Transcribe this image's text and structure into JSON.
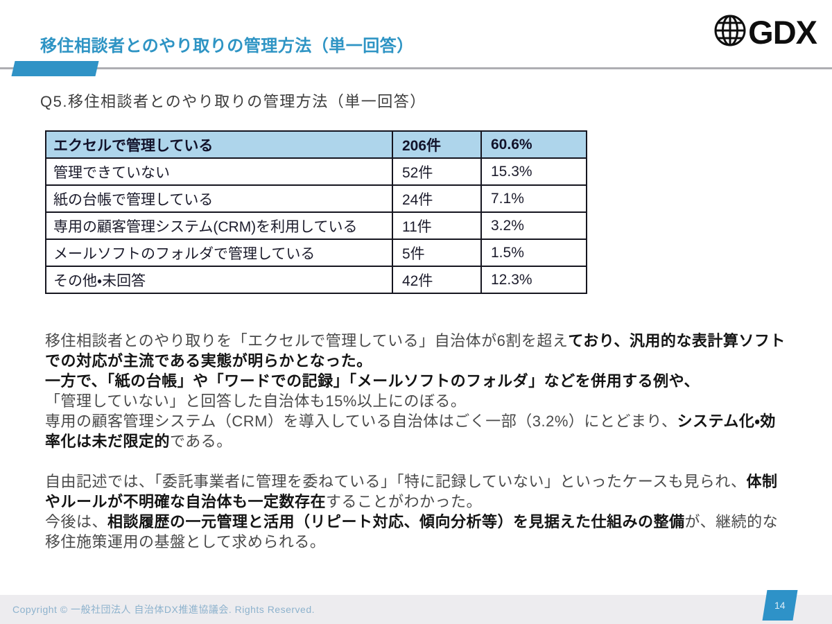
{
  "header": {
    "title": "移住相談者とのやり取りの管理方法（単一回答）",
    "logo_text": "GDX",
    "logo_icon": "globe-icon"
  },
  "question": {
    "label": "Q5.移住相談者とのやり取りの管理方法（単一回答）"
  },
  "table": {
    "rows": [
      {
        "label": "エクセルで管理している",
        "count": "206件",
        "percent": "60.6%",
        "highlight": true
      },
      {
        "label": "管理できていない",
        "count": "52件",
        "percent": "15.3%",
        "highlight": false
      },
      {
        "label": "紙の台帳で管理している",
        "count": "24件",
        "percent": "7.1%",
        "highlight": false
      },
      {
        "label": "専用の顧客管理システム(CRM)を利用している",
        "count": "11件",
        "percent": "3.2%",
        "highlight": false
      },
      {
        "label": "メールソフトのフォルダで管理している",
        "count": "5件",
        "percent": "1.5%",
        "highlight": false
      },
      {
        "label": "その他・未回答",
        "count": "42件",
        "percent": "12.3%",
        "highlight": false
      }
    ]
  },
  "analysis": {
    "paragraphs": [
      {
        "segments": [
          {
            "t": "移住相談者とのやり取りを「エクセルで管理している」自治体が6割を超え",
            "b": false
          },
          {
            "t": "ており、汎用的な表計算ソフトでの対応が主流である実態が明らかとなった。",
            "b": true
          },
          {
            "t": "\n",
            "b": false
          },
          {
            "t": "一方で、「紙の台帳」や「ワードでの記録」「メールソフトのフォルダ」などを併用する例や、",
            "b": true
          },
          {
            "t": "\n「管理していない」と回答した自治体も15%以上にのぼる。\n専用の顧客管理システム（CRM）を導入している自治体はごく一部（3.2%）にとどまり、",
            "b": false
          },
          {
            "t": "システム化・効率化は未だ限定的",
            "b": true
          },
          {
            "t": "である。",
            "b": false
          }
        ]
      },
      {
        "segments": [
          {
            "t": "自由記述では、「委託事業者に管理を委ねている」「特に記録していない」といったケースも見られ、",
            "b": false
          },
          {
            "t": "体制やルールが不明確な自治体も一定数存在",
            "b": true
          },
          {
            "t": "することがわかった。\n今後は、",
            "b": false
          },
          {
            "t": "相談履歴の一元管理と活用（リピート対応、傾向分析等）を見据えた仕組みの整備",
            "b": true
          },
          {
            "t": "が、継続的な移住施策運用の基盤として求められる。",
            "b": false
          }
        ]
      }
    ]
  },
  "footer": {
    "copyright": "Copyright © 一般社団法人 自治体DX推進協議会. Rights Reserved.",
    "page_number": "14"
  },
  "colors": {
    "title_blue": "#2e94c4",
    "accent_blue": "#3093c6",
    "table_header_bg": "#aed5eb",
    "table_border": "#15151f",
    "footer_bg": "#edecef",
    "copyright_text": "#8db2cd",
    "page_tab_blue": "#2e92c8"
  }
}
